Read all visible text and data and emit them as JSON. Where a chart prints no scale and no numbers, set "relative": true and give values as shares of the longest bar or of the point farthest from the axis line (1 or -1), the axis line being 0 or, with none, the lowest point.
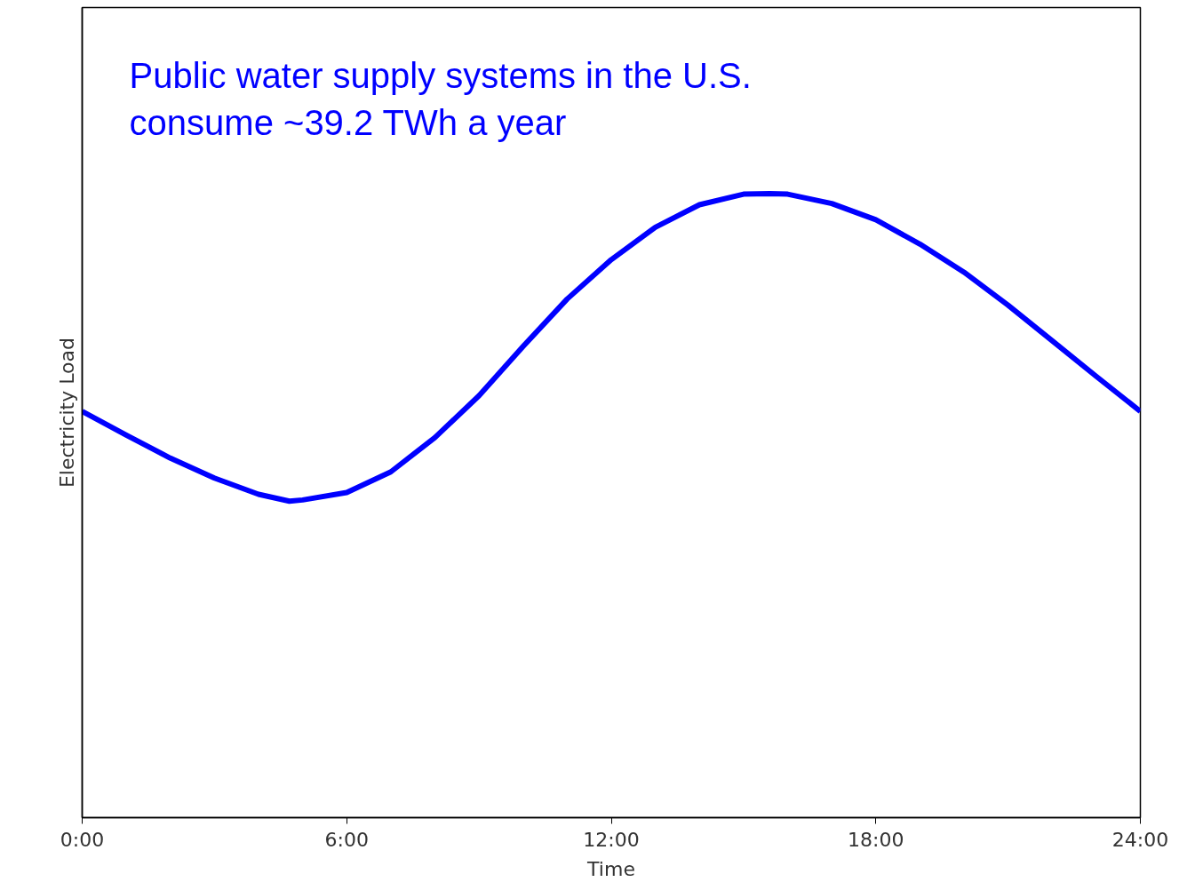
{
  "chart_data": {
    "type": "line",
    "relative": true,
    "xlabel": "Time",
    "ylabel": "Electricity Load",
    "annotations": [
      "Public water supply systems in the U.S.\nconsume ~39.2 TWh a year"
    ],
    "xlim": [
      0,
      24
    ],
    "xticks": [
      {
        "value": 0,
        "label": "0:00"
      },
      {
        "value": 6,
        "label": "6:00"
      },
      {
        "value": 12,
        "label": "12:00"
      },
      {
        "value": 18,
        "label": "18:00"
      },
      {
        "value": 24,
        "label": "24:00"
      }
    ],
    "line_style": "solid",
    "series": [
      {
        "color": "#0000ff",
        "x": [
          0,
          1,
          2,
          3,
          4,
          4.7,
          5,
          6,
          7,
          8,
          9,
          10,
          11,
          12,
          13,
          14,
          15,
          15.6,
          16,
          17,
          18,
          19,
          20,
          21,
          22,
          23,
          24
        ],
        "values": [
          0.651,
          0.613,
          0.576,
          0.544,
          0.518,
          0.507,
          0.509,
          0.521,
          0.554,
          0.609,
          0.676,
          0.755,
          0.831,
          0.894,
          0.946,
          0.982,
          0.999,
          1.0,
          0.999,
          0.984,
          0.958,
          0.919,
          0.874,
          0.821,
          0.764,
          0.707,
          0.651
        ]
      }
    ]
  }
}
